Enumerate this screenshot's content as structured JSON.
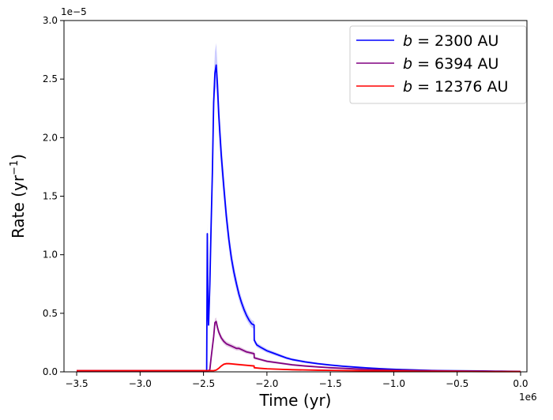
{
  "chart_data": {
    "type": "line",
    "xlabel": "Time (yr)",
    "ylabel": "Rate (yr",
    "ylabel_sup": "−1",
    "ylabel_close": ")",
    "x_offset_text": "1e6",
    "y_offset_text": "1e−5",
    "xlim": [
      -3.6,
      0.05
    ],
    "ylim": [
      0.0,
      3.0
    ],
    "x_scale": 1000000,
    "y_scale": 1e-05,
    "x_ticks": [
      -3.5,
      -3.0,
      -2.5,
      -2.0,
      -1.5,
      -1.0,
      -0.5,
      0.0
    ],
    "x_tick_labels": [
      "−3.5",
      "−3.0",
      "−2.5",
      "−2.0",
      "−1.5",
      "−1.0",
      "−0.5",
      "0.0"
    ],
    "y_ticks": [
      0.0,
      0.5,
      1.0,
      1.5,
      2.0,
      2.5,
      3.0
    ],
    "y_tick_labels": [
      "0.0",
      "0.5",
      "1.0",
      "1.5",
      "2.0",
      "2.5",
      "3.0"
    ],
    "grid": false,
    "legend_position": "top-right",
    "series": [
      {
        "name": "b = 2300 AU",
        "legend_italic": "b",
        "legend_rest": " = 2300 AU",
        "color": "#0000ff",
        "band_color": "#aaaaff",
        "x": [
          -3.5,
          -2.8,
          -2.48,
          -2.475,
          -2.47,
          -2.465,
          -2.46,
          -2.45,
          -2.44,
          -2.43,
          -2.42,
          -2.41,
          -2.4,
          -2.39,
          -2.38,
          -2.36,
          -2.34,
          -2.32,
          -2.3,
          -2.28,
          -2.26,
          -2.24,
          -2.22,
          -2.2,
          -2.18,
          -2.16,
          -2.14,
          -2.12,
          -2.101,
          -2.1,
          -2.08,
          -2.05,
          -2.0,
          -1.95,
          -1.9,
          -1.85,
          -1.8,
          -1.7,
          -1.6,
          -1.5,
          -1.4,
          -1.3,
          -1.2,
          -1.1,
          -1.0,
          -0.9,
          -0.8,
          -0.7,
          -0.6,
          -0.5,
          -0.4,
          -0.3,
          -0.2,
          -0.1,
          0.0
        ],
        "y": [
          0.01,
          0.01,
          0.01,
          0.01,
          1.18,
          0.55,
          0.4,
          0.75,
          1.25,
          1.7,
          2.3,
          2.55,
          2.62,
          2.45,
          2.2,
          1.85,
          1.58,
          1.33,
          1.13,
          0.97,
          0.85,
          0.75,
          0.66,
          0.59,
          0.53,
          0.48,
          0.44,
          0.41,
          0.4,
          0.27,
          0.23,
          0.21,
          0.18,
          0.16,
          0.14,
          0.12,
          0.105,
          0.085,
          0.07,
          0.058,
          0.048,
          0.04,
          0.033,
          0.027,
          0.022,
          0.018,
          0.015,
          0.012,
          0.01,
          0.009,
          0.008,
          0.007,
          0.006,
          0.005,
          0.004
        ]
      },
      {
        "name": "b = 6394 AU",
        "legend_italic": "b",
        "legend_rest": " = 6394 AU",
        "color": "#800080",
        "band_color": "#d4aad4",
        "x": [
          -3.5,
          -2.8,
          -2.46,
          -2.45,
          -2.44,
          -2.42,
          -2.41,
          -2.4,
          -2.39,
          -2.38,
          -2.36,
          -2.34,
          -2.32,
          -2.3,
          -2.28,
          -2.26,
          -2.24,
          -2.22,
          -2.2,
          -2.18,
          -2.16,
          -2.14,
          -2.12,
          -2.101,
          -2.1,
          -2.05,
          -2.0,
          -1.9,
          -1.8,
          -1.7,
          -1.6,
          -1.5,
          -1.4,
          -1.3,
          -1.2,
          -1.1,
          -1.0,
          -0.8,
          -0.6,
          -0.4,
          -0.2,
          0.0
        ],
        "y": [
          0.01,
          0.01,
          0.01,
          0.02,
          0.12,
          0.3,
          0.42,
          0.43,
          0.38,
          0.34,
          0.29,
          0.26,
          0.24,
          0.23,
          0.22,
          0.21,
          0.2,
          0.2,
          0.19,
          0.18,
          0.17,
          0.165,
          0.16,
          0.155,
          0.12,
          0.105,
          0.09,
          0.075,
          0.06,
          0.05,
          0.042,
          0.035,
          0.03,
          0.025,
          0.021,
          0.018,
          0.015,
          0.011,
          0.008,
          0.006,
          0.004,
          0.003
        ]
      },
      {
        "name": "b = 12376 AU",
        "legend_italic": "b",
        "legend_rest": " = 12376 AU",
        "color": "#ff0000",
        "band_color": "#ffaaaa",
        "x": [
          -3.5,
          -2.8,
          -2.42,
          -2.4,
          -2.38,
          -2.36,
          -2.34,
          -2.32,
          -2.3,
          -2.28,
          -2.25,
          -2.2,
          -2.15,
          -2.101,
          -2.1,
          -2.05,
          -2.0,
          -1.9,
          -1.8,
          -1.6,
          -1.4,
          -1.2,
          -1.0,
          -0.8,
          -0.6,
          -0.4,
          -0.2,
          0.0
        ],
        "y": [
          0.01,
          0.01,
          0.01,
          0.015,
          0.03,
          0.05,
          0.065,
          0.07,
          0.07,
          0.068,
          0.065,
          0.06,
          0.055,
          0.05,
          0.035,
          0.03,
          0.026,
          0.022,
          0.018,
          0.014,
          0.011,
          0.009,
          0.007,
          0.005,
          0.004,
          0.003,
          0.002,
          0.002
        ]
      }
    ]
  }
}
